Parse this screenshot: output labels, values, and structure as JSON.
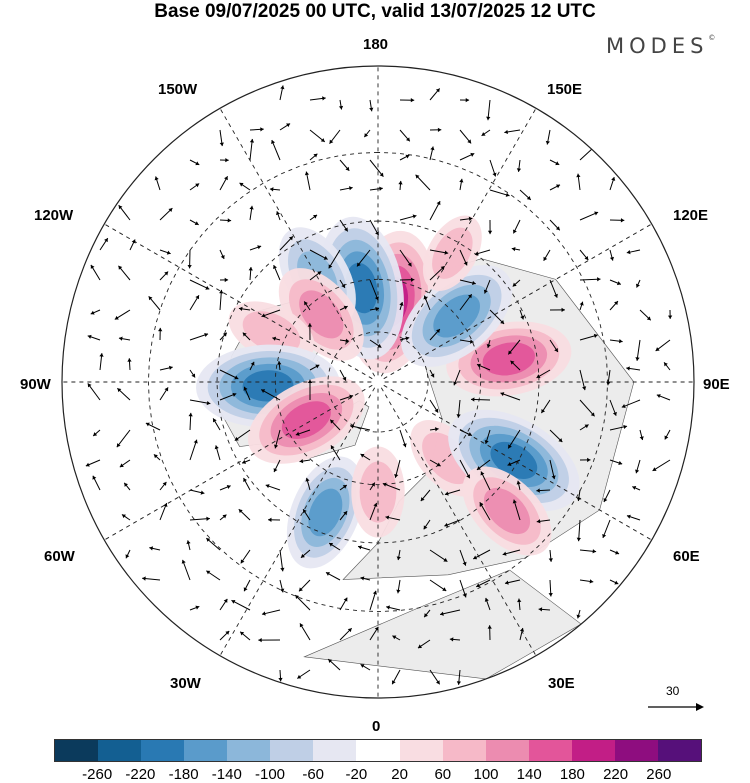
{
  "title": "Base 09/07/2025 00 UTC, valid 13/07/2025 12 UTC",
  "brand": "MODES",
  "brand_mark": "©",
  "longitude_labels": {
    "top": "180",
    "bottom": "0",
    "left": "90W",
    "right": "90E",
    "top_left": "150W",
    "top_right": "150E",
    "upper_left": "120W",
    "upper_right": "120E",
    "lower_left": "60W",
    "lower_right": "60E",
    "bottom_left": "30W",
    "bottom_right": "30E"
  },
  "reference_vector": {
    "label": "30"
  },
  "colorbar": {
    "ticks": [
      "-260",
      "-220",
      "-180",
      "-140",
      "-100",
      "-60",
      "-20",
      "20",
      "60",
      "100",
      "140",
      "180",
      "220",
      "260"
    ],
    "colors": [
      "#0b3a5c",
      "#135f92",
      "#2979b3",
      "#5a9bcb",
      "#8cb7da",
      "#bfcfe6",
      "#e6e7f2",
      "#ffffff",
      "#f9dde2",
      "#f6b9c8",
      "#ec8cb0",
      "#e3559a",
      "#c21e86",
      "#8e0d7f",
      "#56107a"
    ]
  },
  "map": {
    "anomalies": [
      {
        "lon": 170,
        "lat": 66,
        "value": 200
      },
      {
        "lon": -170,
        "lat": 62,
        "value": -200
      },
      {
        "lon": -150,
        "lat": 55,
        "value": -120
      },
      {
        "lon": -140,
        "lat": 64,
        "value": 120
      },
      {
        "lon": -115,
        "lat": 56,
        "value": 80
      },
      {
        "lon": -88,
        "lat": 58,
        "value": -200
      },
      {
        "lon": -62,
        "lat": 66,
        "value": 160
      },
      {
        "lon": -22,
        "lat": 50,
        "value": -140
      },
      {
        "lon": 0,
        "lat": 58,
        "value": 80
      },
      {
        "lon": 42,
        "lat": 60,
        "value": 80
      },
      {
        "lon": 60,
        "lat": 46,
        "value": -200
      },
      {
        "lon": 100,
        "lat": 52,
        "value": 160
      },
      {
        "lon": 130,
        "lat": 60,
        "value": -170
      },
      {
        "lon": 45,
        "lat": 40,
        "value": 120
      },
      {
        "lon": 150,
        "lat": 48,
        "value": 60
      }
    ]
  }
}
